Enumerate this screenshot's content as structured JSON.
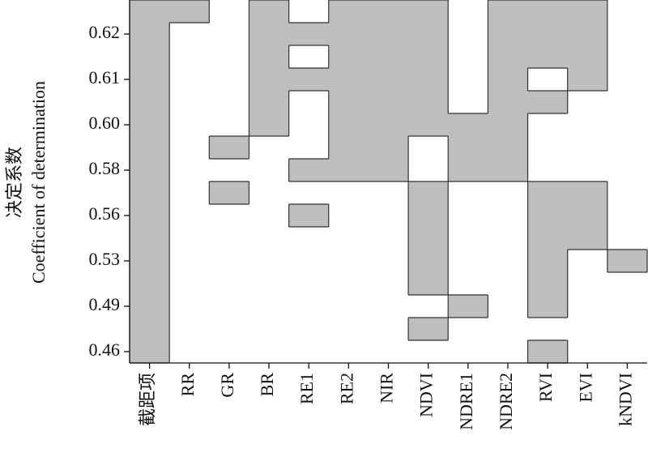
{
  "chart_data": {
    "type": "heatmap",
    "y_label": [
      "决定系数",
      "Coefficient of determination"
    ],
    "x_categories": [
      "截距项",
      "RR",
      "GR",
      "BR",
      "RE1",
      "RE2",
      "NIR",
      "NDVI",
      "NDRE1",
      "NDRE2",
      "RVI",
      "EVI",
      "kNDVI"
    ],
    "y_categories": [
      null,
      "0.62",
      null,
      "0.61",
      null,
      "0.60",
      null,
      "0.58",
      null,
      "0.56",
      null,
      "0.53",
      null,
      "0.49",
      null,
      "0.46"
    ],
    "values": [
      [
        1,
        1,
        0,
        1,
        0,
        1,
        1,
        1,
        0,
        1,
        1,
        1,
        0
      ],
      [
        1,
        0,
        0,
        1,
        1,
        1,
        1,
        1,
        0,
        1,
        1,
        1,
        0
      ],
      [
        1,
        0,
        0,
        1,
        0,
        1,
        1,
        1,
        0,
        1,
        1,
        1,
        0
      ],
      [
        1,
        0,
        0,
        1,
        1,
        1,
        1,
        1,
        0,
        1,
        0,
        1,
        0
      ],
      [
        1,
        0,
        0,
        1,
        0,
        1,
        1,
        1,
        0,
        1,
        1,
        0,
        0
      ],
      [
        1,
        0,
        0,
        1,
        0,
        1,
        1,
        1,
        1,
        1,
        0,
        0,
        0
      ],
      [
        1,
        0,
        1,
        0,
        0,
        1,
        1,
        0,
        1,
        1,
        0,
        0,
        0
      ],
      [
        1,
        0,
        0,
        0,
        1,
        1,
        1,
        0,
        1,
        1,
        0,
        0,
        0
      ],
      [
        1,
        0,
        1,
        0,
        0,
        0,
        0,
        1,
        0,
        0,
        1,
        1,
        0
      ],
      [
        1,
        0,
        0,
        0,
        1,
        0,
        0,
        1,
        0,
        0,
        1,
        1,
        0
      ],
      [
        1,
        0,
        0,
        0,
        0,
        0,
        0,
        1,
        0,
        0,
        1,
        1,
        0
      ],
      [
        1,
        0,
        0,
        0,
        0,
        0,
        0,
        1,
        0,
        0,
        1,
        0,
        1
      ],
      [
        1,
        0,
        0,
        0,
        0,
        0,
        0,
        1,
        0,
        0,
        1,
        0,
        0
      ],
      [
        1,
        0,
        0,
        0,
        0,
        0,
        0,
        0,
        1,
        0,
        1,
        0,
        0
      ],
      [
        1,
        0,
        0,
        0,
        0,
        0,
        0,
        1,
        0,
        0,
        0,
        0,
        0
      ],
      [
        1,
        0,
        0,
        0,
        0,
        0,
        0,
        0,
        0,
        0,
        1,
        0,
        0
      ]
    ],
    "color": "#bebebe"
  }
}
